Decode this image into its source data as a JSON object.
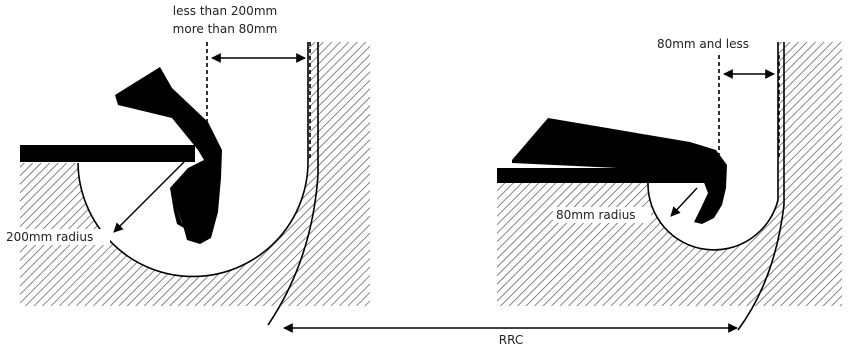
{
  "labels": {
    "left_gap_line1": "less than 200mm",
    "left_gap_line2": "more than 80mm",
    "left_radius": "200mm radius",
    "right_gap": "80mm and less",
    "right_radius": "80mm radius",
    "bottom_span": "RRC"
  },
  "colors": {
    "ink": "#000000",
    "hatch": "#555555",
    "background": "#ffffff"
  }
}
